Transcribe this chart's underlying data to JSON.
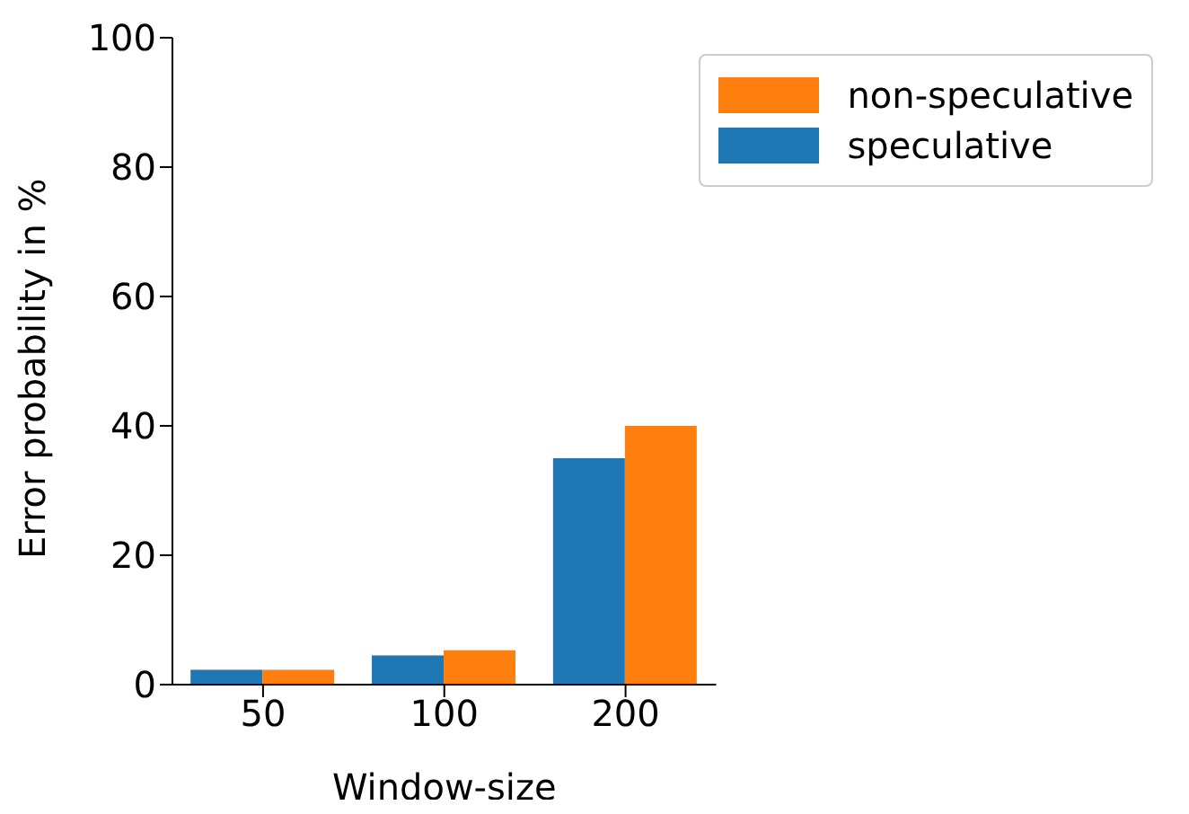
{
  "chart_data": {
    "type": "bar",
    "xlabel": "Window-size",
    "ylabel": "Error probability in %",
    "categories": [
      "50",
      "100",
      "200"
    ],
    "series": [
      {
        "name": "speculative",
        "color": "#1f77b4",
        "values": [
          2.3,
          4.5,
          35
        ]
      },
      {
        "name": "non-speculative",
        "color": "#ff7f0e",
        "values": [
          2.3,
          5.3,
          40
        ]
      }
    ],
    "ylim": [
      0,
      100
    ],
    "yticks": [
      0,
      20,
      40,
      60,
      80,
      100
    ],
    "grid": false,
    "legend": "top right"
  }
}
